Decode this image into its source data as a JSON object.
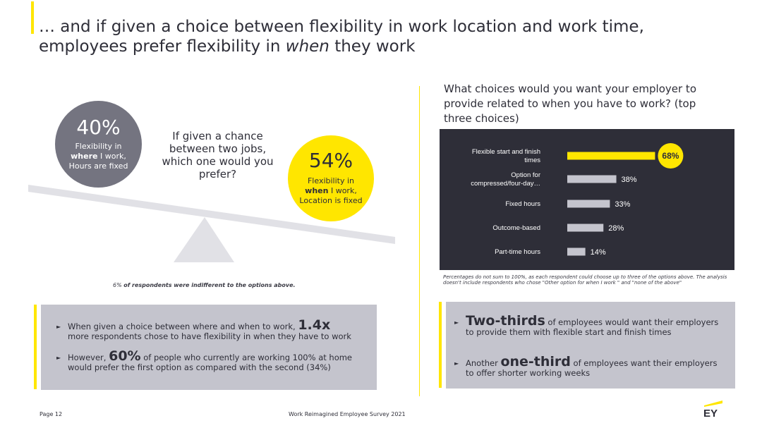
{
  "title": {
    "line1": "… and if given a choice between flexibility in work location and work time,",
    "line2_before": "employees prefer flexibility in ",
    "line2_emph": "when",
    "line2_after": " they work"
  },
  "left": {
    "circle_40": {
      "pct": "40%",
      "l1": "Flexibility in",
      "l2_b": "where",
      "l2_rest": " I work,",
      "l3": "Hours are fixed",
      "color": "#747480"
    },
    "question": "If given a chance between two jobs, which one would you prefer?",
    "circle_54": {
      "pct": "54%",
      "l1": "Flexibility in",
      "l2_b": "when",
      "l2_rest": " I work,",
      "l3": "Location is fixed",
      "color": "#ffe600"
    },
    "indifferent_pre": "6% ",
    "indifferent_b": "of respondents were indifferent to the options above.",
    "box": {
      "b1_pre": "When given a choice between where and when to work, ",
      "b1_big": "1.4x",
      "b1_post": "more respondents chose to have flexibility in when they have to work",
      "b2_pre": "However, ",
      "b2_big": "60%",
      "b2_post": " of  people who currently are working 100% at home would prefer the first option as compared with the second (34%)"
    }
  },
  "right": {
    "question": "What choices would you want your employer to provide related to when you have to work? (top three choices)",
    "footnote": "Percentages do not sum to 100%, as each respondent could choose up to three of the options above. The analysis doesn't include respondents who chose \"Other option for when I work \" and \"none of the above\"",
    "box": {
      "b1_big": "Two-thirds",
      "b1_post": " of employees would want their employers to provide them with flexible start and finish times",
      "b2_pre": "Another ",
      "b2_big": "one-third",
      "b2_post": " of employees want their employers to offer shorter working weeks"
    }
  },
  "chart_data": {
    "type": "bar",
    "orientation": "horizontal",
    "categories": [
      [
        "Flexible start and finish",
        "times"
      ],
      [
        "Option for",
        "compressed/four-day…"
      ],
      [
        "Fixed hours"
      ],
      [
        "Outcome-based"
      ],
      [
        "Part-time hours"
      ]
    ],
    "values": [
      68,
      38,
      33,
      28,
      14
    ],
    "value_labels": [
      "68%",
      "38%",
      "33%",
      "28%",
      "14%"
    ],
    "highlight_index": 0,
    "colors": {
      "highlight": "#ffe600",
      "bar": "#c4c4cd",
      "background": "#2e2e38",
      "text": "#ffffff"
    }
  },
  "footer": {
    "page": "Page 12",
    "survey": "Work Reimagined Employee Survey 2021",
    "logo": "EY"
  }
}
